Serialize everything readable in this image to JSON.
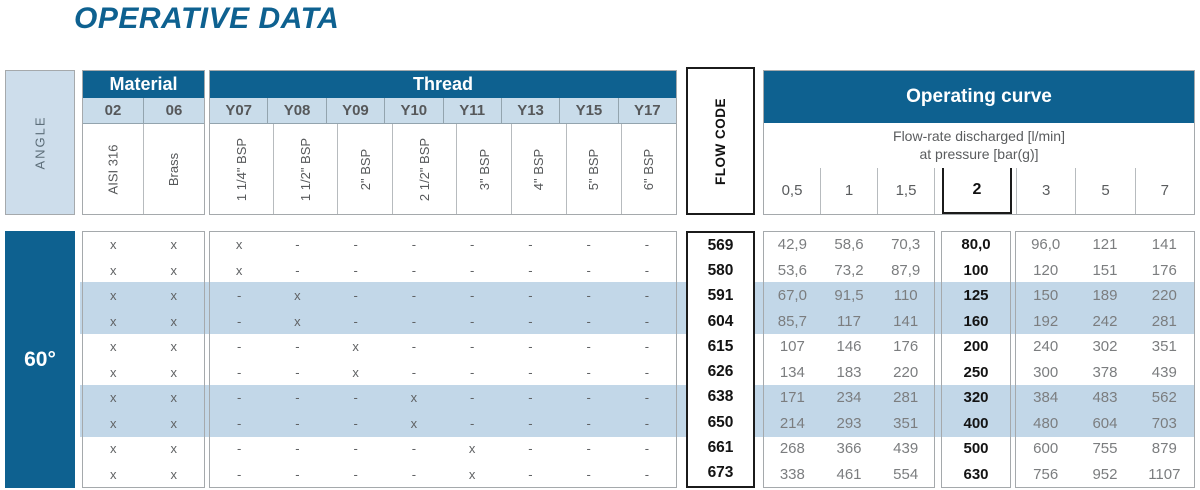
{
  "title": "OPERATIVE DATA",
  "colors": {
    "primary_blue": "#0e6190",
    "light_blue": "#c9dcea",
    "stripe_blue": "#c2d7e8"
  },
  "angle": {
    "header": "ANGLE",
    "value": "60°"
  },
  "material": {
    "header": "Material",
    "columns": [
      {
        "code": "02",
        "name": "AISI 316"
      },
      {
        "code": "06",
        "name": "Brass"
      }
    ]
  },
  "thread": {
    "header": "Thread",
    "columns": [
      {
        "code": "Y07",
        "name": "1 1/4\" BSP"
      },
      {
        "code": "Y08",
        "name": "1 1/2\" BSP"
      },
      {
        "code": "Y09",
        "name": "2\" BSP"
      },
      {
        "code": "Y10",
        "name": "2 1/2\" BSP"
      },
      {
        "code": "Y11",
        "name": "3\" BSP"
      },
      {
        "code": "Y13",
        "name": "4\" BSP"
      },
      {
        "code": "Y15",
        "name": "5\" BSP"
      },
      {
        "code": "Y17",
        "name": "6\" BSP"
      }
    ]
  },
  "flow_code_header": "FLOW CODE",
  "operating_curve": {
    "header": "Operating curve",
    "subtitle_line1": "Flow-rate discharged [l/min]",
    "subtitle_line2": "at pressure [bar(g)]",
    "pressures": [
      "0,5",
      "1",
      "1,5",
      "2",
      "3",
      "5",
      "7"
    ],
    "bold_pressure_index": 3
  },
  "striped_row_indexes": [
    2,
    3,
    6,
    7
  ],
  "rows": [
    {
      "material": [
        "x",
        "x"
      ],
      "thread": [
        "x",
        "-",
        "-",
        "-",
        "-",
        "-",
        "-",
        "-"
      ],
      "flow_code": "569",
      "values": [
        "42,9",
        "58,6",
        "70,3",
        "80,0",
        "96,0",
        "121",
        "141"
      ]
    },
    {
      "material": [
        "x",
        "x"
      ],
      "thread": [
        "x",
        "-",
        "-",
        "-",
        "-",
        "-",
        "-",
        "-"
      ],
      "flow_code": "580",
      "values": [
        "53,6",
        "73,2",
        "87,9",
        "100",
        "120",
        "151",
        "176"
      ]
    },
    {
      "material": [
        "x",
        "x"
      ],
      "thread": [
        "-",
        "x",
        "-",
        "-",
        "-",
        "-",
        "-",
        "-"
      ],
      "flow_code": "591",
      "values": [
        "67,0",
        "91,5",
        "110",
        "125",
        "150",
        "189",
        "220"
      ]
    },
    {
      "material": [
        "x",
        "x"
      ],
      "thread": [
        "-",
        "x",
        "-",
        "-",
        "-",
        "-",
        "-",
        "-"
      ],
      "flow_code": "604",
      "values": [
        "85,7",
        "117",
        "141",
        "160",
        "192",
        "242",
        "281"
      ]
    },
    {
      "material": [
        "x",
        "x"
      ],
      "thread": [
        "-",
        "-",
        "x",
        "-",
        "-",
        "-",
        "-",
        "-"
      ],
      "flow_code": "615",
      "values": [
        "107",
        "146",
        "176",
        "200",
        "240",
        "302",
        "351"
      ]
    },
    {
      "material": [
        "x",
        "x"
      ],
      "thread": [
        "-",
        "-",
        "x",
        "-",
        "-",
        "-",
        "-",
        "-"
      ],
      "flow_code": "626",
      "values": [
        "134",
        "183",
        "220",
        "250",
        "300",
        "378",
        "439"
      ]
    },
    {
      "material": [
        "x",
        "x"
      ],
      "thread": [
        "-",
        "-",
        "-",
        "x",
        "-",
        "-",
        "-",
        "-"
      ],
      "flow_code": "638",
      "values": [
        "171",
        "234",
        "281",
        "320",
        "384",
        "483",
        "562"
      ]
    },
    {
      "material": [
        "x",
        "x"
      ],
      "thread": [
        "-",
        "-",
        "-",
        "x",
        "-",
        "-",
        "-",
        "-"
      ],
      "flow_code": "650",
      "values": [
        "214",
        "293",
        "351",
        "400",
        "480",
        "604",
        "703"
      ]
    },
    {
      "material": [
        "x",
        "x"
      ],
      "thread": [
        "-",
        "-",
        "-",
        "-",
        "x",
        "-",
        "-",
        "-"
      ],
      "flow_code": "661",
      "values": [
        "268",
        "366",
        "439",
        "500",
        "600",
        "755",
        "879"
      ]
    },
    {
      "material": [
        "x",
        "x"
      ],
      "thread": [
        "-",
        "-",
        "-",
        "-",
        "x",
        "-",
        "-",
        "-"
      ],
      "flow_code": "673",
      "values": [
        "338",
        "461",
        "554",
        "630",
        "756",
        "952",
        "1107"
      ]
    }
  ]
}
